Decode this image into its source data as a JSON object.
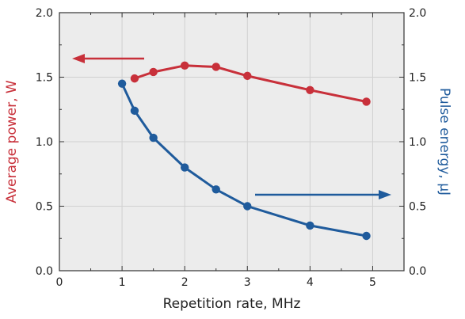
{
  "chart_data": {
    "type": "line",
    "xlabel": "Repetition rate, MHz",
    "ylabel_left": "Average power, W",
    "ylabel_right": "Pulse energy, µJ",
    "xlim": [
      0,
      5.5
    ],
    "ylim_left": [
      0,
      2.0
    ],
    "ylim_right": [
      0,
      2.0
    ],
    "x_ticks": [
      "0",
      "1",
      "2",
      "3",
      "4",
      "5"
    ],
    "y_ticks_left": [
      "0.0",
      "0.5",
      "1.0",
      "1.5",
      "2.0"
    ],
    "y_ticks_right": [
      "0.0",
      "0.5",
      "1.0",
      "1.5",
      "2.0"
    ],
    "grid": true,
    "plot_background": "#ececec",
    "series": [
      {
        "axis": "left",
        "color": "#c8303a",
        "x": [
          1.2,
          1.5,
          2.0,
          2.5,
          3.0,
          4.0,
          4.9
        ],
        "y": [
          1.49,
          1.54,
          1.59,
          1.58,
          1.51,
          1.4,
          1.31
        ]
      },
      {
        "axis": "right",
        "color": "#1f5b9c",
        "x": [
          1.0,
          1.2,
          1.5,
          2.0,
          2.5,
          3.0,
          4.0,
          4.9
        ],
        "y": [
          1.45,
          1.24,
          1.03,
          0.8,
          0.63,
          0.5,
          0.35,
          0.27
        ]
      }
    ],
    "annotations": [
      {
        "kind": "arrow",
        "points_to": "left-axis",
        "color": "#c8303a"
      },
      {
        "kind": "arrow",
        "points_to": "right-axis",
        "color": "#1f5b9c"
      }
    ]
  }
}
